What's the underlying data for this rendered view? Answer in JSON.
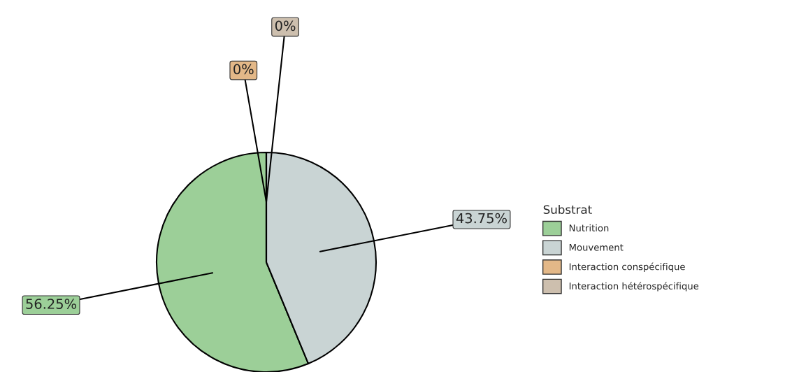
{
  "chart_data": {
    "type": "pie",
    "legend_title": "Substrat",
    "categories": [
      "Nutrition",
      "Mouvement",
      "Interaction conspécifique",
      "Interaction hétérospécifique"
    ],
    "values": [
      56.25,
      43.75,
      0,
      0
    ],
    "value_labels": [
      "56.25%",
      "43.75%",
      "0%",
      "0%"
    ],
    "colors": [
      "#9ccf98",
      "#c9d4d4",
      "#e3b888",
      "#cdbfae"
    ],
    "legend": "right"
  }
}
